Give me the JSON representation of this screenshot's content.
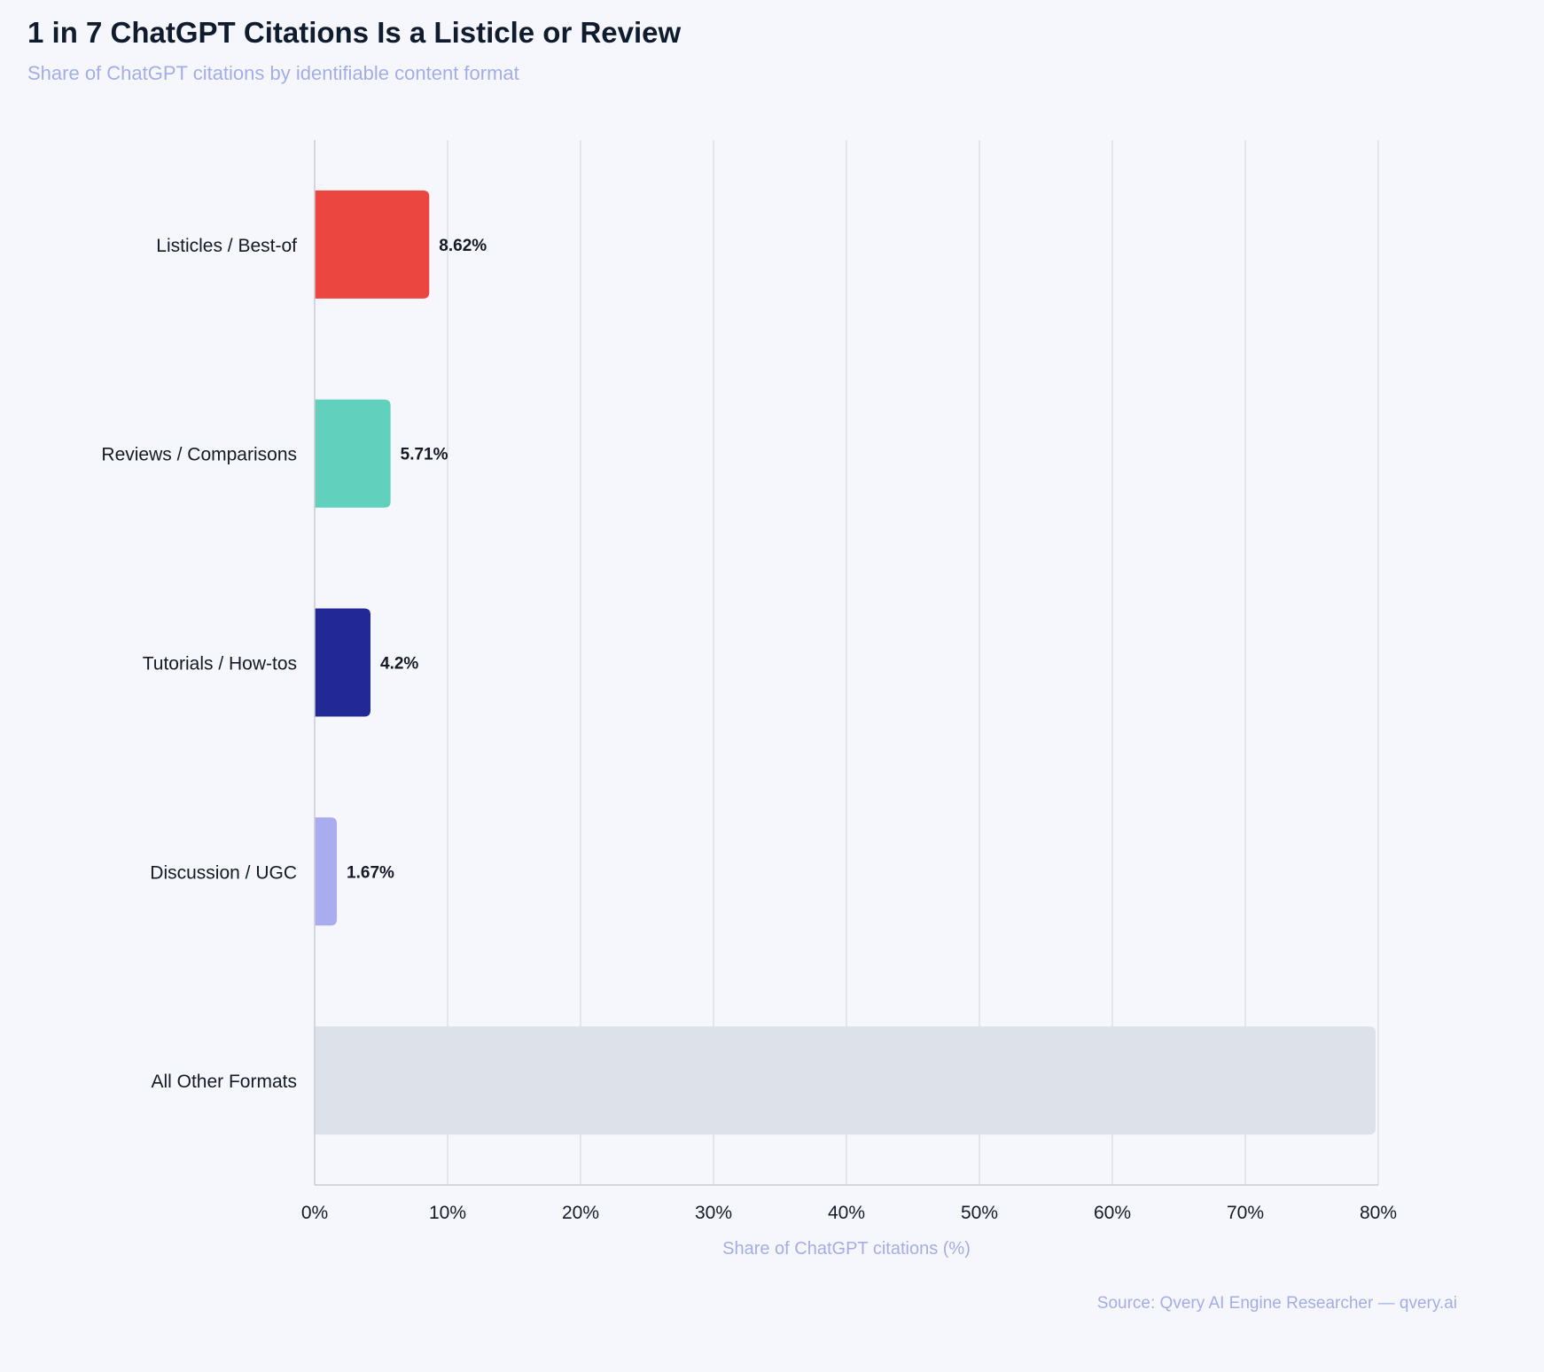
{
  "chart_data": {
    "type": "bar",
    "orientation": "horizontal",
    "title": "1 in 7 ChatGPT Citations Is a Listicle or Review",
    "subtitle": "Share of ChatGPT citations by identifiable content format",
    "xlabel": "Share of ChatGPT citations (%)",
    "ylabel": "",
    "xlim": [
      0,
      80
    ],
    "ticks": [
      {
        "value": 0,
        "label": "0%"
      },
      {
        "value": 10,
        "label": "10%"
      },
      {
        "value": 20,
        "label": "20%"
      },
      {
        "value": 30,
        "label": "30%"
      },
      {
        "value": 40,
        "label": "40%"
      },
      {
        "value": 50,
        "label": "50%"
      },
      {
        "value": 60,
        "label": "60%"
      },
      {
        "value": 70,
        "label": "70%"
      },
      {
        "value": 80,
        "label": "80%"
      }
    ],
    "grid": true,
    "categories": [
      "Listicles / Best-of",
      "Reviews / Comparisons",
      "Tutorials / How-tos",
      "Discussion / UGC",
      "All Other Formats"
    ],
    "values": [
      8.62,
      5.71,
      4.2,
      1.67,
      79.8
    ],
    "value_labels": [
      "8.62%",
      "5.71%",
      "4.2%",
      "1.67%",
      ""
    ],
    "colors": [
      "#ec4641",
      "#61d0bd",
      "#222895",
      "#a9adf0",
      "#dde2ea"
    ],
    "source": "Source: Qvery AI Engine Researcher — qvery.ai"
  }
}
